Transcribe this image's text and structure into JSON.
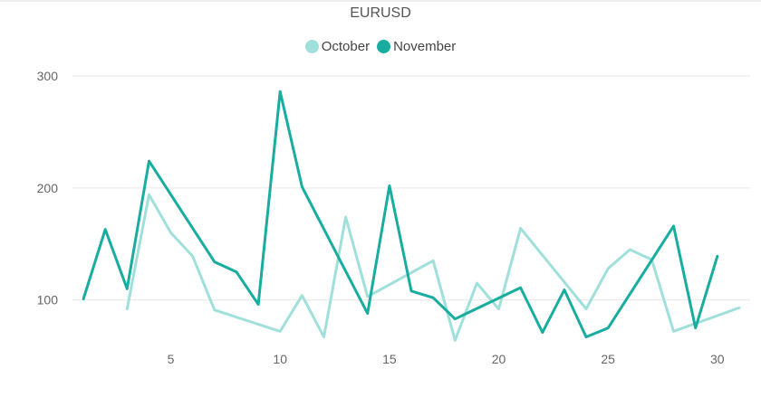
{
  "chart_data": {
    "type": "line",
    "title": "EURUSD",
    "xlabel": "",
    "ylabel": "",
    "xlim": [
      0.5,
      31.5
    ],
    "ylim": [
      40,
      300
    ],
    "x_ticks": [
      5,
      10,
      15,
      20,
      25,
      30
    ],
    "y_ticks": [
      100,
      200,
      300
    ],
    "grid": "horizontal",
    "legend_position": "top-center",
    "series": [
      {
        "name": "October",
        "color": "#a0e0da",
        "points": [
          [
            3,
            92
          ],
          [
            4,
            194
          ],
          [
            5,
            160
          ],
          [
            6,
            139
          ],
          [
            7,
            91
          ],
          [
            10,
            72
          ],
          [
            11,
            104
          ],
          [
            12,
            67
          ],
          [
            13,
            174
          ],
          [
            14,
            103
          ],
          [
            17,
            135
          ],
          [
            18,
            64
          ],
          [
            19,
            115
          ],
          [
            20,
            92
          ],
          [
            21,
            164
          ],
          [
            24,
            92
          ],
          [
            25,
            128
          ],
          [
            26,
            145
          ],
          [
            27,
            136
          ],
          [
            28,
            72
          ],
          [
            31,
            93
          ]
        ]
      },
      {
        "name": "November",
        "color": "#18ad9f",
        "points": [
          [
            1,
            101
          ],
          [
            2,
            163
          ],
          [
            3,
            110
          ],
          [
            4,
            224
          ],
          [
            7,
            134
          ],
          [
            8,
            125
          ],
          [
            9,
            96
          ],
          [
            10,
            286
          ],
          [
            11,
            201
          ],
          [
            14,
            88
          ],
          [
            15,
            202
          ],
          [
            16,
            108
          ],
          [
            17,
            102
          ],
          [
            18,
            83
          ],
          [
            21,
            111
          ],
          [
            22,
            71
          ],
          [
            23,
            109
          ],
          [
            24,
            67
          ],
          [
            25,
            75
          ],
          [
            28,
            166
          ],
          [
            29,
            75
          ],
          [
            30,
            139
          ]
        ]
      }
    ]
  }
}
